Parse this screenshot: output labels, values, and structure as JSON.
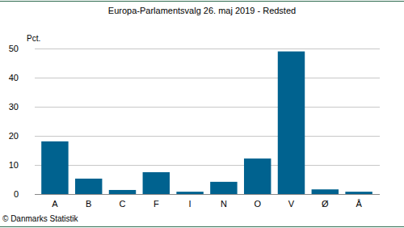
{
  "chart_data": {
    "type": "bar",
    "title": "Europa-Parlamentsvalg 26. maj 2019 - Redsted",
    "y_label": "Pct.",
    "source": "© Danmarks Statistik",
    "categories": [
      "A",
      "B",
      "C",
      "F",
      "I",
      "N",
      "O",
      "V",
      "Ø",
      "Å"
    ],
    "values": [
      18.1,
      5.3,
      1.4,
      7.5,
      0.8,
      4.2,
      12.2,
      49.0,
      1.6,
      0.8
    ],
    "color": "#00628f",
    "ylim": [
      0,
      50
    ],
    "yticks": [
      0,
      10,
      20,
      30,
      40,
      50
    ],
    "grid": true
  }
}
